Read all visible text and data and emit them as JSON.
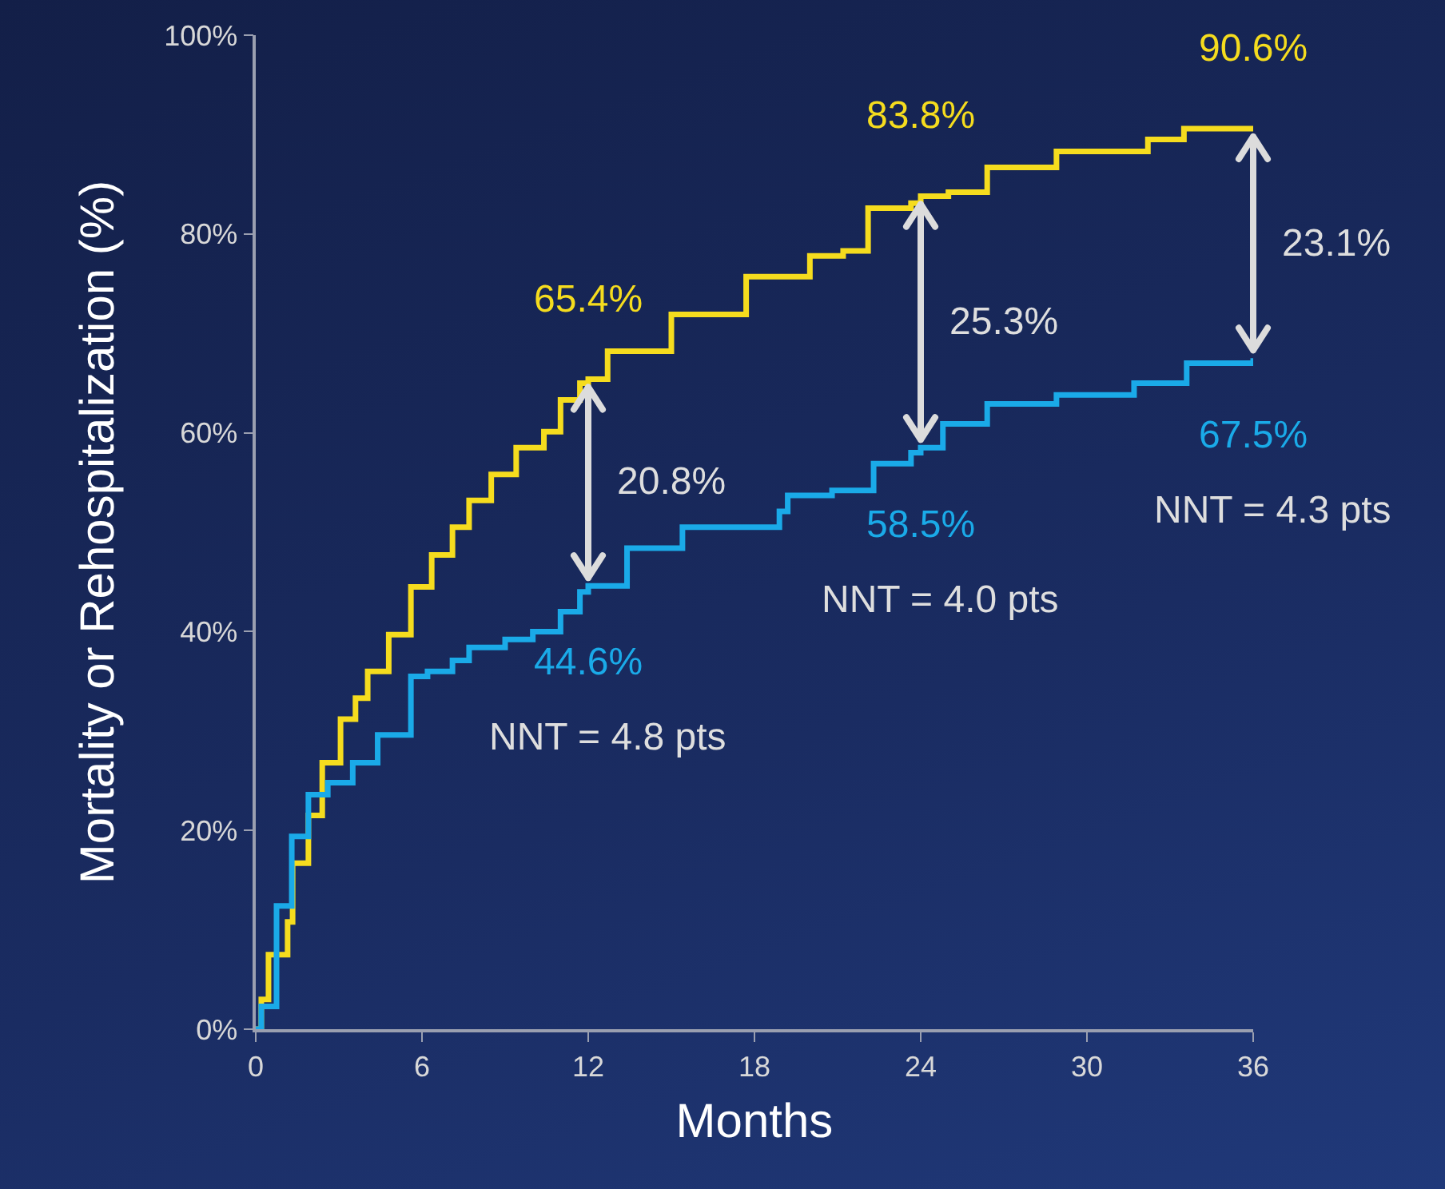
{
  "chart_data": {
    "type": "step",
    "xlabel": "Months",
    "ylabel": "Mortality or Rehospitalization (%)",
    "xlim": [
      0,
      36
    ],
    "xticks": [
      0,
      6,
      12,
      18,
      24,
      30,
      36
    ],
    "ylim": [
      0,
      100
    ],
    "yticks": [
      {
        "value": 0,
        "label": "0%"
      },
      {
        "value": 20,
        "label": "20%"
      },
      {
        "value": 40,
        "label": "40%"
      },
      {
        "value": 60,
        "label": "60%"
      },
      {
        "value": 80,
        "label": "80%"
      },
      {
        "value": 100,
        "label": "100%"
      }
    ],
    "grid": false,
    "legend": false,
    "marker": "none",
    "line_style": "solid",
    "series": [
      {
        "color": "#f5dc1e",
        "x": [
          0,
          0.2,
          0.46,
          1.15,
          1.33,
          1.9,
          2.4,
          3.06,
          3.6,
          4.04,
          4.8,
          5.6,
          6.35,
          7.1,
          7.7,
          8.5,
          9.4,
          10.4,
          11,
          11.7,
          12,
          12.7,
          15,
          17.7,
          20,
          21.2,
          22.1,
          23.65,
          24,
          25,
          26.4,
          28.9,
          32.2,
          33.5,
          36
        ],
        "values": [
          0,
          3,
          7.5,
          10.8,
          16.7,
          21.5,
          26.8,
          31.2,
          33.3,
          36,
          39.7,
          44.5,
          47.7,
          50.5,
          53.2,
          55.8,
          58.5,
          60.1,
          63.3,
          65,
          65.4,
          68.2,
          71.9,
          75.7,
          77.8,
          78.3,
          82.6,
          83.1,
          83.8,
          84.2,
          86.7,
          88.3,
          89.5,
          90.6,
          90.6
        ],
        "value_labels": [
          null,
          null,
          null,
          null,
          null,
          null,
          null,
          null,
          null,
          null,
          null,
          null,
          null,
          null,
          null,
          null,
          null,
          null,
          null,
          null,
          "65.4%",
          null,
          null,
          null,
          null,
          null,
          null,
          null,
          "83.8%",
          null,
          null,
          null,
          null,
          null,
          "90.6%"
        ]
      },
      {
        "color": "#1aaae8",
        "x": [
          0,
          0.2,
          0.75,
          1.3,
          1.9,
          2.6,
          3.5,
          4.4,
          5.6,
          6.2,
          7.1,
          7.7,
          9,
          10,
          11,
          11.7,
          12,
          13.4,
          15.4,
          18.9,
          19.2,
          20.8,
          22.3,
          23.65,
          24,
          24.8,
          26.4,
          28.9,
          31.7,
          33.6,
          36
        ],
        "values": [
          0,
          2.3,
          12.4,
          19.4,
          23.6,
          24.8,
          26.8,
          29.6,
          35.5,
          36,
          37.1,
          38.4,
          39.2,
          40,
          42,
          44,
          44.6,
          48.4,
          50.5,
          52.1,
          53.7,
          54.2,
          56.9,
          58,
          58.5,
          60.9,
          62.9,
          63.8,
          65,
          67,
          67.5
        ],
        "value_labels": [
          null,
          null,
          null,
          null,
          null,
          null,
          null,
          null,
          null,
          null,
          null,
          null,
          null,
          null,
          null,
          null,
          "44.6%",
          null,
          null,
          null,
          null,
          null,
          null,
          null,
          "58.5%",
          null,
          null,
          null,
          null,
          null,
          "67.5%"
        ]
      }
    ],
    "annotations": [
      "20.8%",
      "NNT = 4.8 pts",
      "25.3%",
      "NNT = 4.0 pts",
      "23.1%",
      "NNT = 4.3 pts"
    ]
  }
}
